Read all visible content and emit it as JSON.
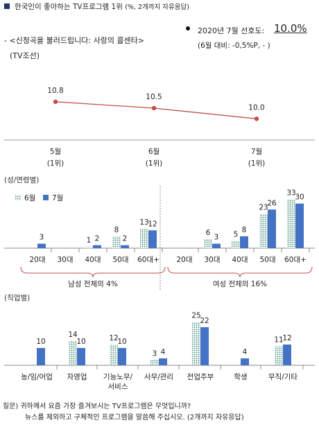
{
  "title": "한국인이 좋아하는 TV프로그램 1위",
  "title_note": "(%, 2개까지 자유응답)",
  "program": {
    "line1": "- <신청곡을 불러드립니다: 사랑의 콜센타>",
    "line2": "(TV조선)"
  },
  "stat": {
    "label": "2020년 7월 선호도:",
    "value": "10.0%",
    "diff": "(6월 대비: -0,5%P,  -  )"
  },
  "section_labels": {
    "gender_age": "(성/연령별)",
    "occupation": "(직업별)"
  },
  "colors": {
    "trend_line": "#c0504d",
    "june_bar": "#6fa8a0",
    "july_bar": "#4472c4",
    "title_bullet": "#1f3864"
  },
  "chart_data": [
    {
      "type": "line",
      "categories": [
        "5월\n(1위)",
        "6월\n(1위)",
        "7월\n(1위)"
      ],
      "values": [
        10.8,
        10.5,
        10.0
      ],
      "ylim": [
        9.0,
        12.0
      ]
    },
    {
      "type": "bar",
      "legend": [
        "6월",
        "7월"
      ],
      "groups": [
        {
          "summary": "남성 전체의 4%",
          "categories": [
            "20대",
            "30대",
            "40대",
            "50대",
            "60대+"
          ],
          "series": [
            {
              "name": "6월",
              "values": [
                0,
                0,
                1,
                8,
                13
              ]
            },
            {
              "name": "7월",
              "values": [
                3,
                0,
                2,
                2,
                12
              ]
            }
          ],
          "labels": {
            "6월": [
              "",
              "",
              "1",
              "8",
              "13"
            ],
            "7월": [
              "3",
              "",
              "2",
              "2",
              "12"
            ]
          }
        },
        {
          "summary": "여성 전체의 16%",
          "categories": [
            "20대",
            "30대",
            "40대",
            "50대",
            "60대+"
          ],
          "series": [
            {
              "name": "6월",
              "values": [
                0,
                6,
                5,
                23,
                33
              ]
            },
            {
              "name": "7월",
              "values": [
                0,
                3,
                8,
                26,
                30
              ]
            }
          ],
          "labels": {
            "6월": [
              "",
              "6",
              "5",
              "23",
              "33"
            ],
            "7월": [
              "",
              "3",
              "8",
              "26",
              "30"
            ]
          }
        }
      ],
      "ylim": [
        0,
        35
      ]
    },
    {
      "type": "bar",
      "categories": [
        "농/임/어업",
        "자영업",
        "기능노무/\n서비스",
        "사무/관리",
        "전업주부",
        "학생",
        "무직/기타"
      ],
      "series": [
        {
          "name": "6월",
          "values": [
            0,
            14,
            12,
            3,
            25,
            0,
            11
          ]
        },
        {
          "name": "7월",
          "values": [
            10,
            10,
            10,
            4,
            22,
            4,
            12
          ]
        }
      ],
      "labels": {
        "6월": [
          "",
          "14",
          "12",
          "3",
          "25",
          "",
          "11"
        ],
        "7월": [
          "10",
          "10",
          "10",
          "4",
          "22",
          "4",
          "12"
        ]
      },
      "ylim": [
        0,
        30
      ]
    }
  ],
  "footnote": {
    "line1": "질문) 귀하께서 요즘 가장 즐겨보시는 TV프로그램은 무엇입니까?",
    "line2": "뉴스를 제외하고 구체적인 프로그램을 말씀해 주십시오. (2개까지 자유응답)"
  }
}
